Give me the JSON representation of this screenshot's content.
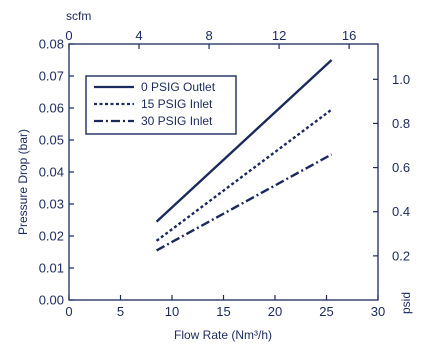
{
  "chart_data": {
    "type": "line",
    "colors": {
      "ink": "#1b2a5c"
    },
    "xlabel": "Flow Rate (Nm³/h)",
    "ylabel": "Pressure Drop (bar)",
    "top_axis_label": "scfm",
    "right_axis_label": "psid",
    "xlim": [
      0,
      30
    ],
    "ylim": [
      0,
      0.08
    ],
    "top_xlim": [
      0,
      17.65
    ],
    "right_ylim": [
      0,
      1.16
    ],
    "x_ticks": [
      {
        "v": 0,
        "label": "0"
      },
      {
        "v": 5,
        "label": "5"
      },
      {
        "v": 10,
        "label": "10"
      },
      {
        "v": 15,
        "label": "15"
      },
      {
        "v": 20,
        "label": "20"
      },
      {
        "v": 25,
        "label": "25"
      },
      {
        "v": 30,
        "label": "30"
      }
    ],
    "y_ticks": [
      {
        "v": 0,
        "label": "0.00"
      },
      {
        "v": 0.01,
        "label": "0.01"
      },
      {
        "v": 0.02,
        "label": "0.02"
      },
      {
        "v": 0.03,
        "label": "0.03"
      },
      {
        "v": 0.04,
        "label": "0.04"
      },
      {
        "v": 0.05,
        "label": "0.05"
      },
      {
        "v": 0.06,
        "label": "0.06"
      },
      {
        "v": 0.07,
        "label": "0.07"
      },
      {
        "v": 0.08,
        "label": "0.08"
      }
    ],
    "top_ticks": [
      {
        "v": 0,
        "label": "0"
      },
      {
        "v": 4,
        "label": "4"
      },
      {
        "v": 8,
        "label": "8"
      },
      {
        "v": 12,
        "label": "12"
      },
      {
        "v": 16,
        "label": "16"
      }
    ],
    "right_ticks": [
      {
        "v": 0.2,
        "label": "0.2"
      },
      {
        "v": 0.4,
        "label": "0.4"
      },
      {
        "v": 0.6,
        "label": "0.6"
      },
      {
        "v": 0.8,
        "label": "0.8"
      },
      {
        "v": 1.0,
        "label": "1.0"
      }
    ],
    "legend_position": "top-left",
    "series": [
      {
        "name": "0 PSIG Outlet",
        "style": "solid",
        "x": [
          8.5,
          25.5
        ],
        "y": [
          0.0245,
          0.075
        ]
      },
      {
        "name": "15 PSIG Inlet",
        "style": "dotted",
        "x": [
          8.5,
          25.5
        ],
        "y": [
          0.0185,
          0.0595
        ]
      },
      {
        "name": "30 PSIG Inlet",
        "style": "dashdot",
        "x": [
          8.5,
          25.5
        ],
        "y": [
          0.0155,
          0.0455
        ]
      }
    ]
  }
}
